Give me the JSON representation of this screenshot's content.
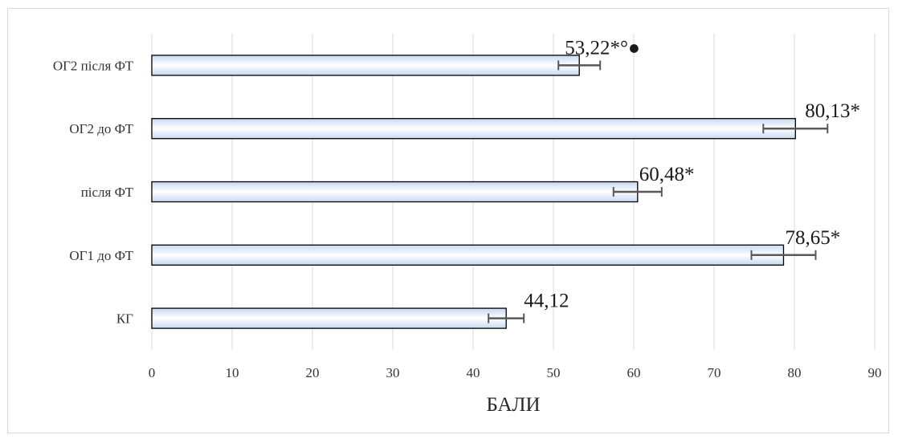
{
  "chart_data": {
    "type": "bar",
    "orientation": "horizontal",
    "categories": [
      "ОГ2 після ФТ",
      "ОГ2 до ФТ",
      "після ФТ",
      "ОГ1 до ФТ",
      "КГ"
    ],
    "values": [
      53.22,
      80.13,
      60.48,
      78.65,
      44.12
    ],
    "errors": [
      2.6,
      4.0,
      3.0,
      4.0,
      2.2
    ],
    "data_labels": [
      "53,22*°●",
      "80,13*",
      "60,48*",
      "78,65*",
      "44,12"
    ],
    "xlabel": "БАЛИ",
    "ylabel": "",
    "title": "",
    "xlim": [
      0,
      90
    ],
    "xticks": [
      0,
      10,
      20,
      30,
      40,
      50,
      60,
      70,
      80,
      90
    ],
    "grid": true,
    "legend": "none",
    "colors": {
      "bar_fill_edge": "#c5d9f0",
      "bar_fill_center": "#ffffff",
      "bar_stroke": "#000000",
      "grid": "#d9d9d9",
      "error_bar": "#595959"
    }
  }
}
